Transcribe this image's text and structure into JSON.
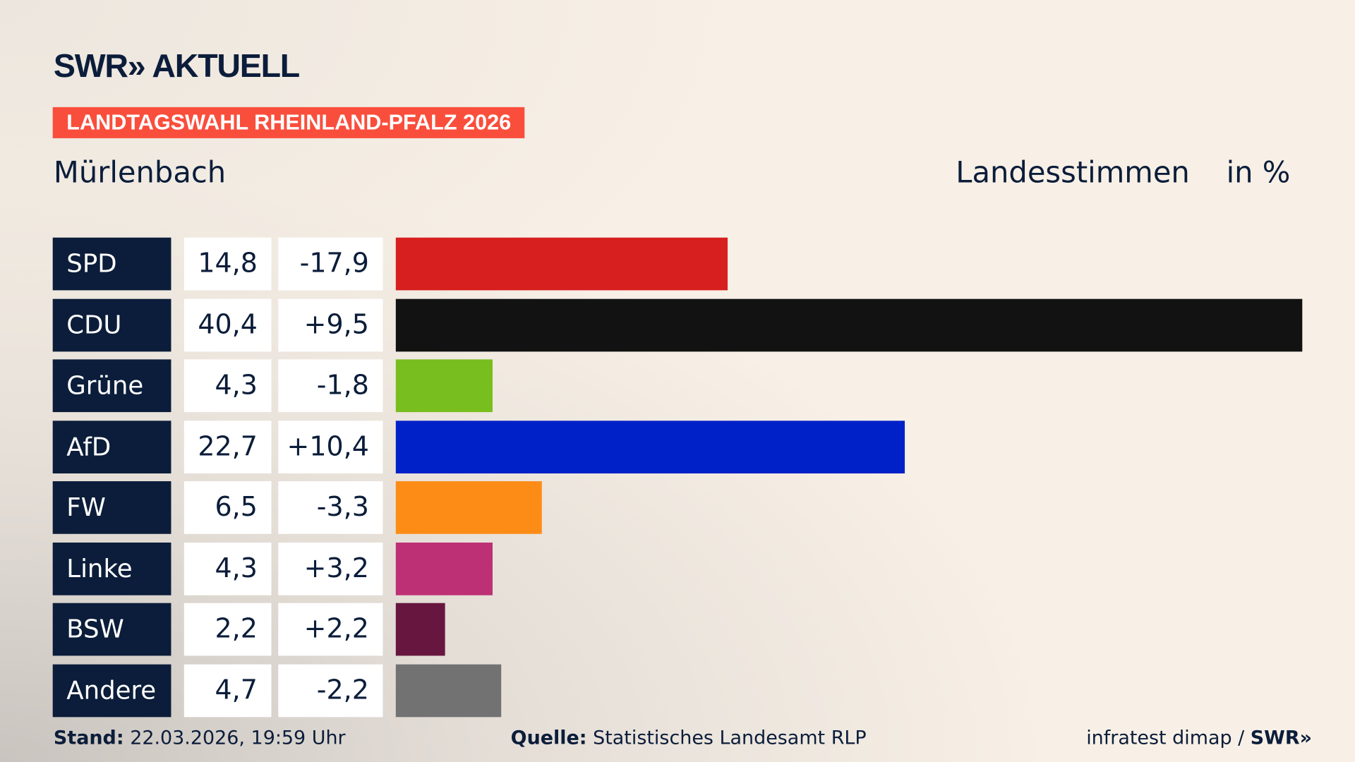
{
  "logo": "SWR» AKTUELL",
  "banner": "LANDTAGSWAHL RHEINLAND-PFALZ 2026",
  "region": "Mürlenbach",
  "header_type": "Landesstimmen",
  "header_unit": "in %",
  "footer": {
    "stand_label": "Stand:",
    "stand_value": "22.03.2026, 19:59 Uhr",
    "source_label": "Quelle:",
    "source_value": "Statistisches Landesamt RLP",
    "credit": "infratest dimap / ",
    "credit_logo": "SWR»"
  },
  "chart_data": {
    "type": "bar",
    "orientation": "horizontal",
    "categories": [
      "SPD",
      "CDU",
      "Grüne",
      "AfD",
      "FW",
      "Linke",
      "BSW",
      "Andere"
    ],
    "values": [
      14.8,
      40.4,
      4.3,
      22.7,
      6.5,
      4.3,
      2.2,
      4.7
    ],
    "value_labels": [
      "14,8",
      "40,4",
      "4,3",
      "22,7",
      "6,5",
      "4,3",
      "2,2",
      "4,7"
    ],
    "diff_labels": [
      "-17,9",
      "+9,5",
      "-1,8",
      "+10,4",
      "-3,3",
      "+3,2",
      "+2,2",
      "-2,2"
    ],
    "colors": [
      "#d71f20",
      "#121212",
      "#78be1e",
      "#0021c8",
      "#fd8c17",
      "#bd3075",
      "#671640",
      "#727272"
    ]
  }
}
